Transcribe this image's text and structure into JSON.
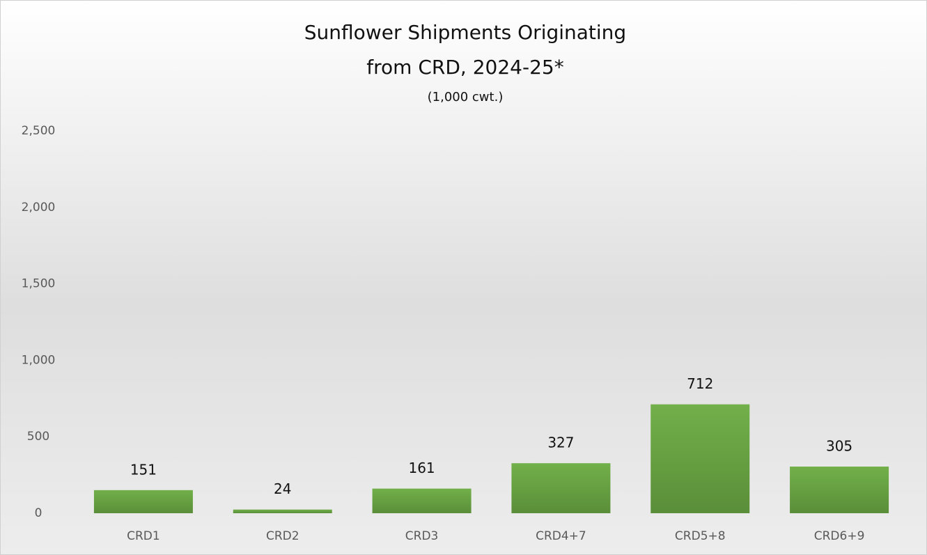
{
  "chart_data": {
    "type": "bar",
    "title": [
      "Sunflower Shipments Originating",
      "from CRD, 2024-25*"
    ],
    "subtitle": "(1,000 cwt.)",
    "categories": [
      "CRD1",
      "CRD2",
      "CRD3",
      "CRD4+7",
      "CRD5+8",
      "CRD6+9"
    ],
    "values": [
      151,
      24,
      161,
      327,
      712,
      305
    ],
    "color": "#70ad47",
    "ylim": [
      0,
      2500
    ],
    "yticks": [
      0,
      500,
      {
        "value": 1000,
        "label": "1,000"
      },
      {
        "value": 1500,
        "label": "1,500"
      },
      {
        "value": 2000,
        "label": "2,000"
      },
      {
        "value": 2500,
        "label": "2,500"
      }
    ],
    "grid": false
  }
}
